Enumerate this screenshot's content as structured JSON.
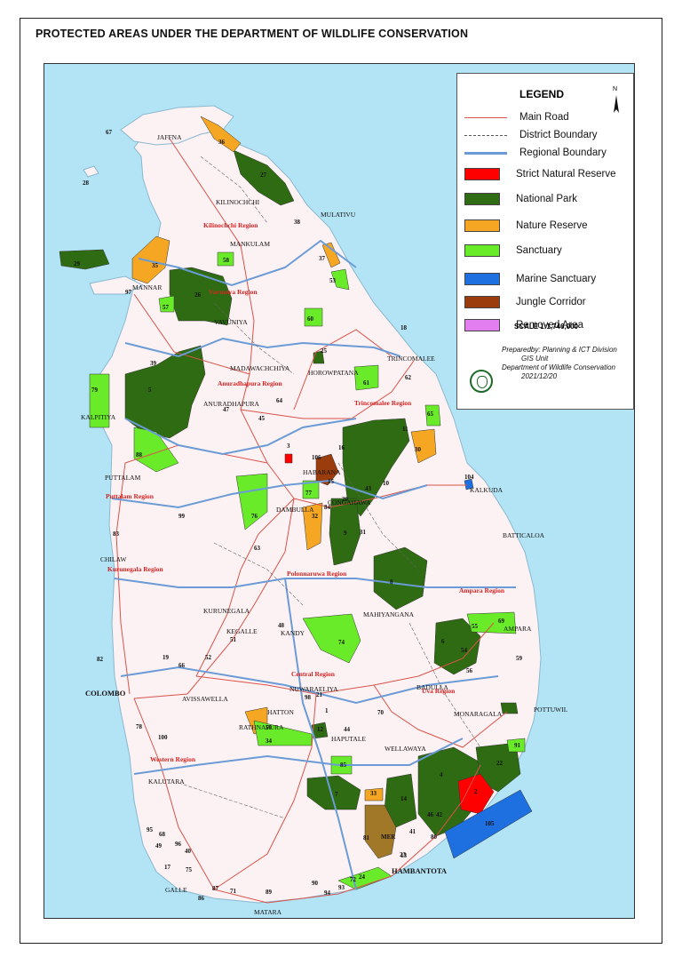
{
  "title": "PROTECTED AREAS UNDER THE DEPARTMENT OF WILDLIFE  CONSERVATION",
  "legend": {
    "title": "LEGEND",
    "north": "N",
    "items": [
      {
        "label": "Main Road",
        "kind": "line",
        "color": "#d9534a"
      },
      {
        "label": "District Boundary",
        "kind": "dash",
        "color": "#555555"
      },
      {
        "label": "Regional Boundary",
        "kind": "line",
        "color": "#6b9bd6"
      },
      {
        "label": "Strict Natural Reserve",
        "kind": "box",
        "color": "#ff0000"
      },
      {
        "label": "National Park",
        "kind": "box",
        "color": "#2e6b12"
      },
      {
        "label": "Nature Reserve",
        "kind": "box",
        "color": "#f5a623"
      },
      {
        "label": "Sanctuary",
        "kind": "box",
        "color": "#6aeb2a"
      },
      {
        "label": "Marine Sanctuary",
        "kind": "box",
        "color": "#1e6fe0"
      },
      {
        "label": "Jungle Corridor",
        "kind": "box",
        "color": "#9b3c0c"
      },
      {
        "label": "Removed Area",
        "kind": "box",
        "color": "#e27ef0"
      }
    ],
    "scale": "SCALE  1:1,746,000",
    "prepared": [
      "Preparedby: Planning & ICT Division",
      "GIS Unit",
      "Department of Wildlife Conservation",
      "2021/12/20"
    ]
  },
  "colors": {
    "sea": "#b3e4f6",
    "land": "#fdf2f3",
    "road": "#d9534a",
    "regional": "#6b9bd6",
    "district": "#666666",
    "strict": "#ff0000",
    "national": "#2e6b12",
    "nature": "#f5a623",
    "sanctuary": "#6aeb2a",
    "marine": "#1e6fe0",
    "corridor": "#9b3c0c",
    "mer": "#a07828",
    "city": "#cc0000"
  },
  "cities": [
    {
      "name": "JAFFNA"
    },
    {
      "name": "KILINOCHCHI"
    },
    {
      "name": "MULATIVU"
    },
    {
      "name": "MANKULAM"
    },
    {
      "name": "MANNAR"
    },
    {
      "name": "VAVUNIYA"
    },
    {
      "name": "MADAWACHCHIYA"
    },
    {
      "name": "HOROWPATANA"
    },
    {
      "name": "TRINCOMALEE"
    },
    {
      "name": "ANURADHAPURA"
    },
    {
      "name": "KALPITIYA"
    },
    {
      "name": "HABARANA"
    },
    {
      "name": "PUTTALAM"
    },
    {
      "name": "DAMBULLA"
    },
    {
      "name": "KALKUDA"
    },
    {
      "name": "BATTICALOA"
    },
    {
      "name": "CHILAW"
    },
    {
      "name": "KURUNEGALA"
    },
    {
      "name": "MAHIYANGANA"
    },
    {
      "name": "AMPARA"
    },
    {
      "name": "KEGALLE"
    },
    {
      "name": "KANDY"
    },
    {
      "name": "COLOMBO"
    },
    {
      "name": "AVISSAWELLA"
    },
    {
      "name": "NUWARAELIYA"
    },
    {
      "name": "BADULLA"
    },
    {
      "name": "HATTON"
    },
    {
      "name": "MONARAGALA"
    },
    {
      "name": "POTTUWIL"
    },
    {
      "name": "RATHNAPURA"
    },
    {
      "name": "HAPUTALE"
    },
    {
      "name": "WELLAWAYA"
    },
    {
      "name": "KALUTARA"
    },
    {
      "name": "HAMBANTOTA"
    },
    {
      "name": "GALLE"
    },
    {
      "name": "MATARA"
    },
    {
      "name": "CONGAHAWA"
    }
  ],
  "regions": [
    {
      "name": "Kilinochchi Region"
    },
    {
      "name": "Vavuniya Region"
    },
    {
      "name": "Anuradhapura Region"
    },
    {
      "name": "Trincomalee Region"
    },
    {
      "name": "Puttalam Region"
    },
    {
      "name": "Kurunegala Region"
    },
    {
      "name": "Polonnaruwa Region"
    },
    {
      "name": "Ampara Region"
    },
    {
      "name": "Central Region"
    },
    {
      "name": "Uva Region"
    },
    {
      "name": "Western Region"
    }
  ],
  "area_labels": [
    "67",
    "36",
    "28",
    "27",
    "38",
    "37",
    "29",
    "35",
    "97",
    "26",
    "58",
    "53",
    "57",
    "60",
    "18",
    "25",
    "39",
    "61",
    "62",
    "79",
    "5",
    "64",
    "47",
    "45",
    "65",
    "11",
    "3",
    "106",
    "16",
    "30",
    "104",
    "88",
    "15",
    "77",
    "43",
    "10",
    "20",
    "84",
    "32",
    "31",
    "99",
    "76",
    "9",
    "83",
    "63",
    "8",
    "48",
    "74",
    "69",
    "6",
    "55",
    "54",
    "56",
    "82",
    "19",
    "66",
    "52",
    "59",
    "98",
    "21",
    "1",
    "44",
    "70",
    "24",
    "78",
    "50",
    "12",
    "100",
    "34",
    "91",
    "85",
    "22",
    "4",
    "7",
    "33",
    "2",
    "14",
    "105",
    "46",
    "95",
    "68",
    "96",
    "42",
    "81",
    "MER",
    "80",
    "49",
    "40",
    "41",
    "17",
    "75",
    "87",
    "71",
    "89",
    "90",
    "72",
    "23",
    "94",
    "93",
    "86",
    "51",
    "13"
  ]
}
